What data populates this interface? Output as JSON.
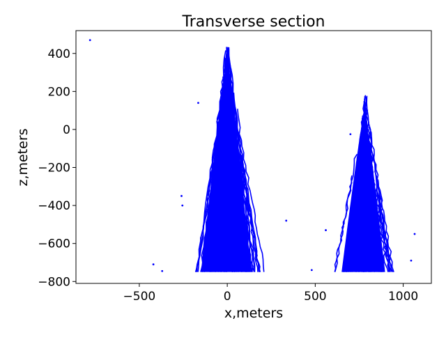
{
  "chart_data": {
    "type": "line",
    "title": "Transverse section",
    "xlabel": "x,meters",
    "ylabel": "z,meters",
    "xlim": [
      -860,
      1160
    ],
    "ylim": [
      -810,
      520
    ],
    "xticks": [
      -500,
      0,
      500,
      1000
    ],
    "xtick_labels": [
      "−500",
      "0",
      "500",
      "1000"
    ],
    "yticks": [
      -800,
      -600,
      -400,
      -200,
      0,
      200,
      400
    ],
    "ytick_labels": [
      "−800",
      "−600",
      "−400",
      "−200",
      "0",
      "200",
      "400"
    ],
    "grid": false,
    "legend": "none",
    "series_color": "#0000ff",
    "series": [
      {
        "clusters": [
          {
            "center_x": 0,
            "apex_x": 0,
            "apex_z": 500,
            "base_z": -750,
            "half_width_base": 230,
            "traces": 70
          },
          {
            "center_x": 780,
            "apex_x": 785,
            "apex_z": 230,
            "base_z": -750,
            "half_width_base": 200,
            "traces": 55
          }
        ],
        "outlier_points": [
          {
            "x": -780,
            "z": 470
          },
          {
            "x": -165,
            "z": 140
          },
          {
            "x": 700,
            "z": -25
          },
          {
            "x": -260,
            "z": -350
          },
          {
            "x": -255,
            "z": -400
          },
          {
            "x": 335,
            "z": -480
          },
          {
            "x": 560,
            "z": -530
          },
          {
            "x": 1065,
            "z": -550
          },
          {
            "x": -420,
            "z": -710
          },
          {
            "x": -370,
            "z": -745
          },
          {
            "x": 480,
            "z": -740
          },
          {
            "x": 1045,
            "z": -690
          }
        ]
      }
    ]
  }
}
